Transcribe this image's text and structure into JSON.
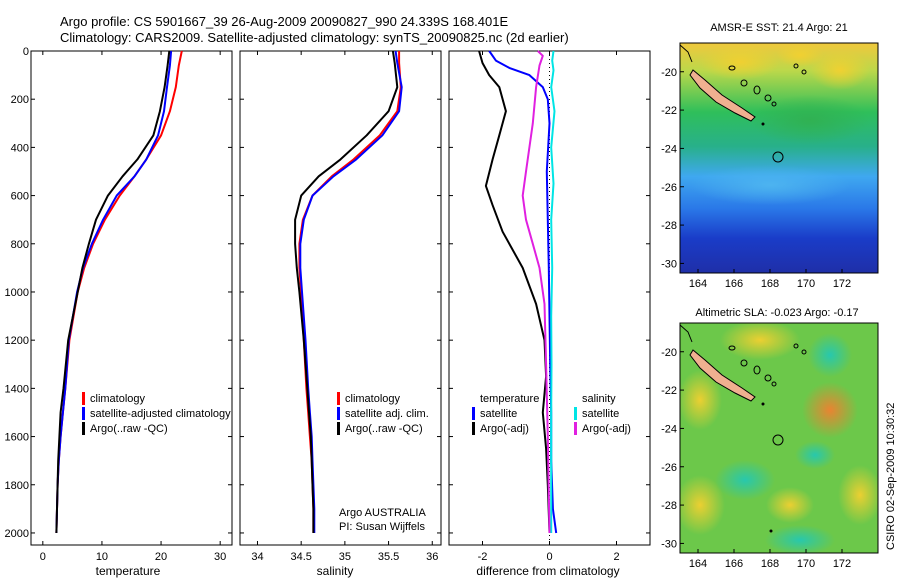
{
  "header": {
    "line1": "Argo profile: CS 5901667_39 26-Aug-2009 20090827_990 24.339S 168.401E",
    "line2": "Climatology: CARS2009. Satellite-adjusted climatology: synTS_20090825.nc (2d earlier)"
  },
  "credit": {
    "program": "Argo AUSTRALIA",
    "pi": "PI: Susan Wijffels",
    "footer": "CSIRO 02-Sep-2009 10:30:32"
  },
  "colors": {
    "climatology": "#ff0000",
    "satellite": "#0000ff",
    "argo": "#000000",
    "salinity_satellite": "#00e5e5",
    "salinity_argo": "#e020e0"
  },
  "chart_data": [
    {
      "type": "line",
      "xlabel": "temperature",
      "ylabel": "",
      "xlim": [
        -2,
        32
      ],
      "ylim": [
        2050,
        0
      ],
      "xticks": [
        0,
        10,
        20,
        30
      ],
      "yticks": [
        0,
        200,
        400,
        600,
        800,
        1000,
        1200,
        1400,
        1600,
        1800,
        2000
      ],
      "legend": {
        "position": "bottom-right",
        "entries": [
          "climatology",
          "satellite-adjusted climatology",
          "Argo(..raw -QC)"
        ]
      },
      "series": [
        {
          "name": "climatology",
          "color": "#ff0000",
          "x": [
            23.5,
            23.0,
            22.5,
            21.5,
            20.0,
            17.5,
            15.5,
            13.0,
            10.5,
            8.5,
            7.0,
            5.9,
            4.5,
            3.8,
            3.4,
            3.0,
            2.7,
            2.5,
            2.4,
            2.3
          ],
          "y": [
            0,
            60,
            150,
            250,
            350,
            450,
            520,
            600,
            700,
            800,
            900,
            1000,
            1200,
            1400,
            1500,
            1600,
            1700,
            1800,
            1900,
            2000
          ]
        },
        {
          "name": "satellite-adjusted climatology",
          "color": "#0000ff",
          "x": [
            21.7,
            21.5,
            21.0,
            20.5,
            19.5,
            17.5,
            15.5,
            12.5,
            10.2,
            8.3,
            6.8,
            5.8,
            4.4,
            3.8,
            3.4,
            3.0,
            2.7,
            2.5,
            2.4,
            2.3
          ],
          "y": [
            0,
            60,
            150,
            250,
            350,
            450,
            520,
            600,
            700,
            800,
            900,
            1000,
            1200,
            1400,
            1500,
            1600,
            1700,
            1800,
            1900,
            2000
          ]
        },
        {
          "name": "Argo(..raw -QC)",
          "color": "#000000",
          "x": [
            21.4,
            21.1,
            20.6,
            19.8,
            18.7,
            16.0,
            13.5,
            11.0,
            9.0,
            7.8,
            6.7,
            5.9,
            4.3,
            3.5,
            3.0,
            2.8,
            2.6,
            2.5,
            2.4,
            2.3
          ],
          "y": [
            0,
            60,
            150,
            250,
            350,
            450,
            520,
            600,
            700,
            800,
            900,
            1000,
            1200,
            1400,
            1500,
            1600,
            1700,
            1800,
            1900,
            2000
          ]
        }
      ]
    },
    {
      "type": "line",
      "xlabel": "salinity",
      "ylabel": "",
      "xlim": [
        33.8,
        36.1
      ],
      "ylim": [
        2050,
        0
      ],
      "xticks": [
        34,
        34.5,
        35,
        35.5,
        36
      ],
      "legend": {
        "position": "bottom-right",
        "entries": [
          "climatology",
          "satellite adj. clim.",
          "Argo(..raw -QC)"
        ]
      },
      "series": [
        {
          "name": "climatology",
          "color": "#ff0000",
          "x": [
            35.62,
            35.62,
            35.64,
            35.6,
            35.4,
            35.1,
            34.85,
            34.63,
            34.52,
            34.48,
            34.48,
            34.5,
            34.53,
            34.56,
            34.58,
            34.6,
            34.62,
            34.63,
            34.64,
            34.64
          ],
          "y": [
            0,
            50,
            150,
            250,
            350,
            450,
            520,
            600,
            700,
            800,
            900,
            1000,
            1200,
            1400,
            1500,
            1600,
            1700,
            1800,
            1900,
            2000
          ]
        },
        {
          "name": "satellite adj. clim.",
          "color": "#0000ff",
          "x": [
            35.58,
            35.6,
            35.65,
            35.62,
            35.43,
            35.13,
            34.87,
            34.63,
            34.53,
            34.49,
            34.49,
            34.51,
            34.55,
            34.58,
            34.6,
            34.62,
            34.63,
            34.64,
            34.65,
            34.65
          ],
          "y": [
            0,
            50,
            150,
            250,
            350,
            450,
            520,
            600,
            700,
            800,
            900,
            1000,
            1200,
            1400,
            1500,
            1600,
            1700,
            1800,
            1900,
            2000
          ]
        },
        {
          "name": "Argo(..raw -QC)",
          "color": "#000000",
          "x": [
            35.55,
            35.57,
            35.6,
            35.5,
            35.25,
            34.95,
            34.7,
            34.5,
            34.43,
            34.43,
            34.45,
            34.48,
            34.53,
            34.57,
            34.59,
            34.61,
            34.62,
            34.63,
            34.64,
            34.64
          ],
          "y": [
            0,
            50,
            150,
            250,
            350,
            450,
            520,
            600,
            700,
            800,
            900,
            1000,
            1200,
            1400,
            1500,
            1600,
            1700,
            1800,
            1900,
            2000
          ]
        }
      ]
    },
    {
      "type": "line",
      "xlabel": "difference from climatology",
      "ylabel": "",
      "xlim": [
        -3.0,
        3.0
      ],
      "ylim": [
        2050,
        0
      ],
      "xticks": [
        -2,
        0,
        2
      ],
      "legend": {
        "position": "bottom-right",
        "columns": [
          {
            "title": "temperature",
            "entries": [
              "satellite",
              "Argo(-adj)"
            ]
          },
          {
            "title": "salinity",
            "entries": [
              "satellite",
              "Argo(-adj)"
            ]
          }
        ]
      },
      "series": [
        {
          "name": "temperature satellite",
          "color": "#0000ff",
          "x": [
            -1.8,
            -1.6,
            -1.2,
            -0.6,
            -0.2,
            -0.05,
            0.0,
            -0.08,
            -0.05,
            -0.02,
            0.0,
            0.02,
            0.05,
            0.05,
            0.1,
            0.2
          ],
          "y": [
            0,
            40,
            70,
            100,
            150,
            200,
            300,
            500,
            700,
            900,
            1100,
            1300,
            1500,
            1700,
            1900,
            2000
          ]
        },
        {
          "name": "temperature Argo(-adj)",
          "color": "#000000",
          "x": [
            -2.1,
            -2.0,
            -1.8,
            -1.5,
            -1.3,
            -1.5,
            -1.7,
            -1.9,
            -1.7,
            -1.4,
            -0.8,
            -0.4,
            -0.15,
            -0.1,
            -0.2,
            -0.1,
            -0.05,
            0.0
          ],
          "y": [
            0,
            50,
            100,
            150,
            250,
            350,
            450,
            560,
            640,
            750,
            900,
            1050,
            1200,
            1350,
            1500,
            1650,
            1800,
            2000
          ]
        },
        {
          "name": "salinity satellite",
          "color": "#00e5e5",
          "x": [
            0.12,
            0.08,
            0.12,
            0.05,
            0.15,
            0.05,
            0.12,
            0.05,
            0.08,
            0.05,
            0.06,
            0.05,
            0.05,
            0.05
          ],
          "y": [
            0,
            40,
            80,
            150,
            250,
            400,
            550,
            700,
            900,
            1100,
            1300,
            1500,
            1700,
            2000
          ]
        },
        {
          "name": "salinity Argo(-adj)",
          "color": "#e020e0",
          "x": [
            -0.35,
            -0.2,
            -0.3,
            -0.4,
            -0.5,
            -0.6,
            -0.7,
            -0.8,
            -0.7,
            -0.5,
            -0.3,
            -0.15,
            -0.1,
            -0.05,
            0.0
          ],
          "y": [
            0,
            20,
            60,
            150,
            300,
            400,
            500,
            600,
            700,
            800,
            900,
            1050,
            1300,
            1600,
            2000
          ]
        }
      ]
    },
    {
      "type": "heatmap",
      "title": "AMSR-E SST: 21.4 Argo: 21",
      "xticks": [
        164,
        166,
        168,
        170,
        172
      ],
      "yticks": [
        -20,
        -22,
        -24,
        -26,
        -28,
        -30
      ],
      "xlim": [
        163,
        174
      ],
      "ylim": [
        -30.5,
        -18.5
      ],
      "marker": {
        "lon": 168.4,
        "lat": -24.3
      }
    },
    {
      "type": "heatmap",
      "title": "Altimetric SLA: -0.023 Argo: -0.17",
      "xticks": [
        164,
        166,
        168,
        170,
        172
      ],
      "yticks": [
        -20,
        -22,
        -24,
        -26,
        -28,
        -30
      ],
      "xlim": [
        163,
        174
      ],
      "ylim": [
        -30.5,
        -18.5
      ],
      "marker": {
        "lon": 168.4,
        "lat": -24.3
      }
    }
  ]
}
